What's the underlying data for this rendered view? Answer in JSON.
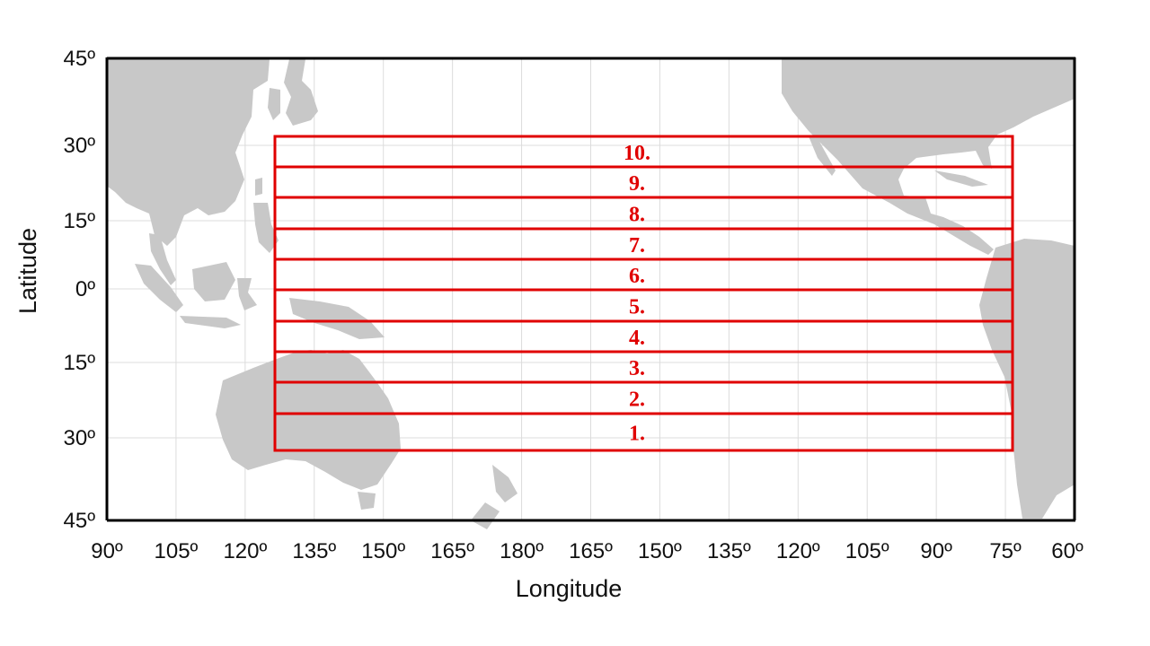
{
  "map": {
    "xlabel": "Longitude",
    "ylabel": "Latitude",
    "x_ticks": [
      "90º",
      "105º",
      "120º",
      "135º",
      "150º",
      "165º",
      "180º",
      "165º",
      "150º",
      "135º",
      "120º",
      "105º",
      "90º",
      "75º",
      "60º"
    ],
    "y_ticks": [
      "45º",
      "30º",
      "15º",
      "0º",
      "15º",
      "30º",
      "45º"
    ],
    "land_color": "#c8c8c8",
    "band_color": "#e00000",
    "bands": [
      {
        "label": "10."
      },
      {
        "label": "9."
      },
      {
        "label": "8."
      },
      {
        "label": "7."
      },
      {
        "label": "6."
      },
      {
        "label": "5."
      },
      {
        "label": "4."
      },
      {
        "label": "3."
      },
      {
        "label": "2."
      },
      {
        "label": "1."
      }
    ]
  }
}
